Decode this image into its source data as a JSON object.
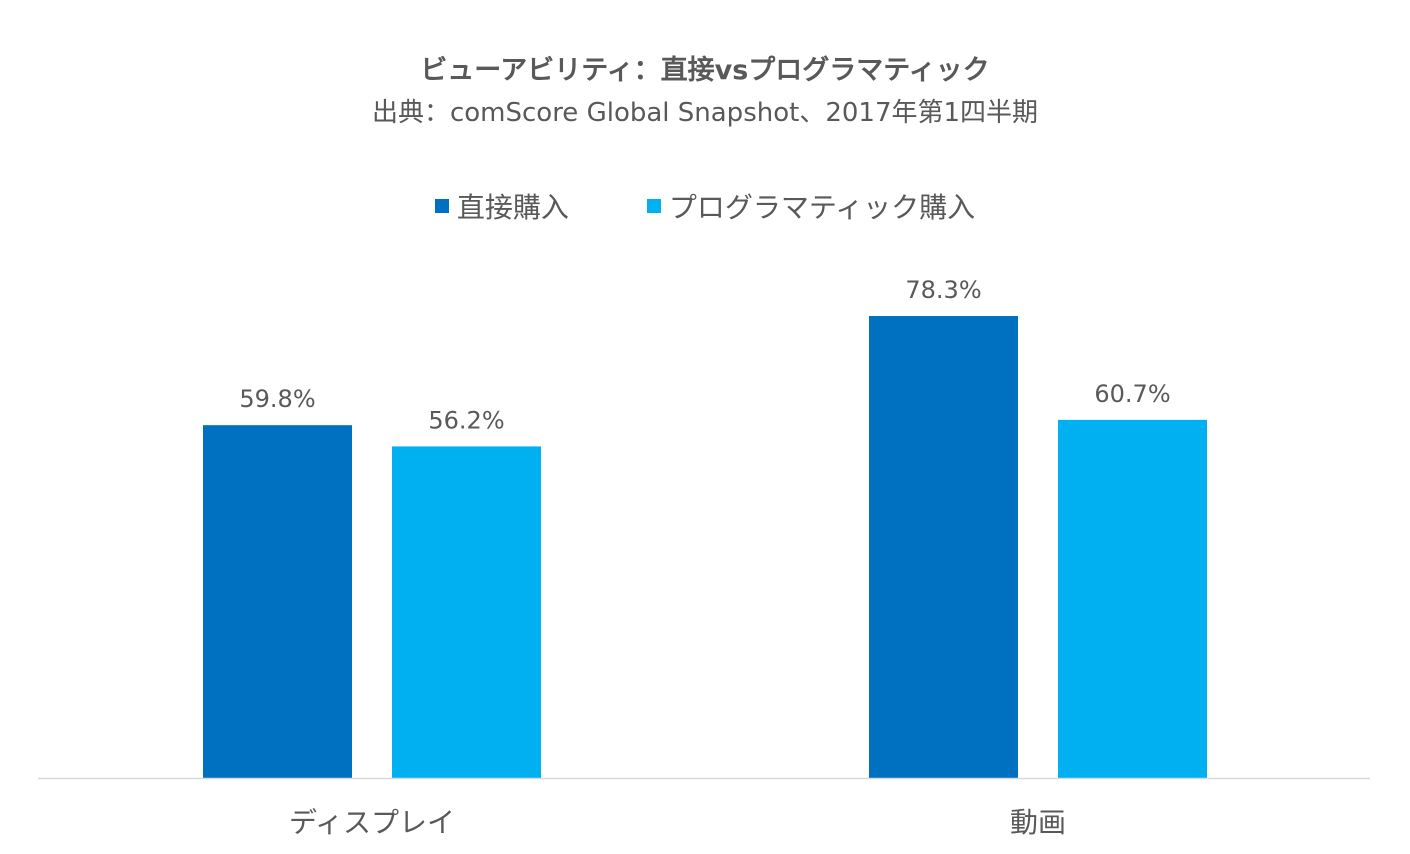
{
  "chart_data": {
    "type": "bar",
    "title": "ビューアビリティ：直接vsプログラマティック",
    "subtitle": "出典：comScore Global Snapshot、2017年第1四半期",
    "categories": [
      "ディスプレイ",
      "動画"
    ],
    "series": [
      {
        "name": "直接購入",
        "color": "#0070C0",
        "values": [
          59.8,
          78.3
        ],
        "labels": [
          "59.8%",
          "78.3%"
        ]
      },
      {
        "name": "プログラマティック購入",
        "color": "#00B0F0",
        "values": [
          56.2,
          60.7
        ],
        "labels": [
          "56.2%",
          "60.7%"
        ]
      }
    ],
    "ylim": [
      0,
      100
    ],
    "grid": false,
    "legend_position": "top"
  }
}
